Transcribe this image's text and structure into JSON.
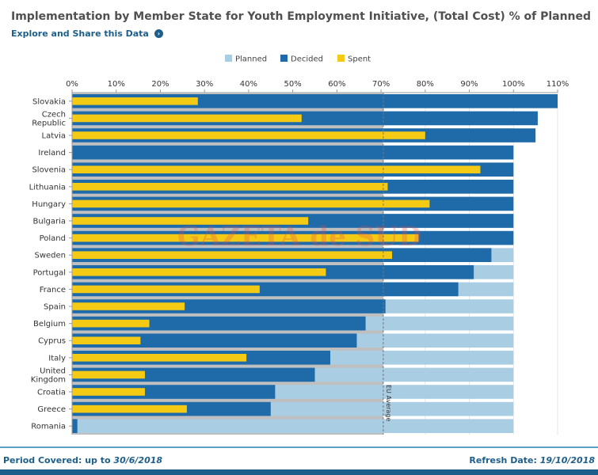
{
  "header": {
    "title": "Implementation by Member State for Youth Employment Initiative, (Total Cost) % of Planned",
    "explore_label": "Explore and Share this Data"
  },
  "footer": {
    "period_label": "Period Covered: up to",
    "period_value": "30/6/2018",
    "refresh_label": "Refresh Date:",
    "refresh_value": "19/10/2018"
  },
  "watermark": "GAZETA de SUD",
  "colors": {
    "planned": "#a9cde2",
    "decided": "#1f6aa8",
    "spent": "#f5ca14",
    "eu_band": "#bfbfbf"
  },
  "chart_data": {
    "type": "bar",
    "orientation": "horizontal",
    "title": "Implementation by Member State for Youth Employment Initiative, (Total Cost) % of Planned",
    "xlim": [
      0,
      110
    ],
    "x_ticks": [
      0,
      10,
      20,
      30,
      40,
      50,
      60,
      70,
      80,
      90,
      100,
      110
    ],
    "tick_suffix": "%",
    "legend_position": "top",
    "grid": true,
    "categories": [
      "Slovakia",
      "Czech Republic",
      "Latvia",
      "Ireland",
      "Slovenia",
      "Lithuania",
      "Hungary",
      "Bulgaria",
      "Poland",
      "Sweden",
      "Portugal",
      "France",
      "Spain",
      "Belgium",
      "Cyprus",
      "Italy",
      "United Kingdom",
      "Croatia",
      "Greece",
      "Romania"
    ],
    "category_lines": [
      [
        "Slovakia"
      ],
      [
        "Czech",
        "Republic"
      ],
      [
        "Latvia"
      ],
      [
        "Ireland"
      ],
      [
        "Slovenia"
      ],
      [
        "Lithuania"
      ],
      [
        "Hungary"
      ],
      [
        "Bulgaria"
      ],
      [
        "Poland"
      ],
      [
        "Sweden"
      ],
      [
        "Portugal"
      ],
      [
        "France"
      ],
      [
        "Spain"
      ],
      [
        "Belgium"
      ],
      [
        "Cyprus"
      ],
      [
        "Italy"
      ],
      [
        "United",
        "Kingdom"
      ],
      [
        "Croatia"
      ],
      [
        "Greece"
      ],
      [
        "Romania"
      ]
    ],
    "series": [
      {
        "name": "Planned",
        "values": [
          100,
          100,
          100,
          100,
          100,
          100,
          100,
          100,
          100,
          100,
          100,
          100,
          100,
          100,
          100,
          100,
          100,
          100,
          100,
          100
        ]
      },
      {
        "name": "Decided",
        "values": [
          110,
          105.5,
          105,
          100,
          100,
          100,
          100,
          100,
          100,
          95,
          91,
          87.5,
          71,
          66.5,
          64.5,
          58.5,
          55,
          46,
          45,
          1.2
        ]
      },
      {
        "name": "Spent",
        "values": [
          28.5,
          52,
          80,
          0,
          92.5,
          71.5,
          81,
          53.5,
          78.5,
          72.5,
          57.5,
          42.5,
          25.5,
          17.5,
          15.5,
          39.5,
          16.5,
          16.5,
          26,
          0
        ]
      }
    ],
    "reference_line": {
      "label": "EU Average",
      "value": 70.5
    }
  }
}
